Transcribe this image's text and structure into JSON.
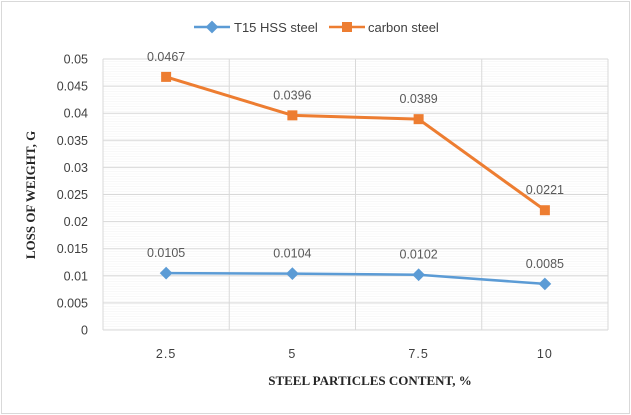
{
  "chart_data": {
    "type": "line",
    "title": "",
    "xlabel": "STEEL PARTICLES CONTENT, %",
    "ylabel": "LOSS OF WEIGHT, G",
    "categories": [
      "2.5",
      "5",
      "7.5",
      "10"
    ],
    "ylim": [
      0,
      0.05
    ],
    "yticks": [
      0,
      0.005,
      0.01,
      0.015,
      0.02,
      0.025,
      0.03,
      0.035,
      0.04,
      0.045,
      0.05
    ],
    "ytick_labels": [
      "0",
      "0.005",
      "0.01",
      "0.015",
      "0.02",
      "0.025",
      "0.03",
      "0.035",
      "0.04",
      "0.045",
      "0.05"
    ],
    "legend_position": "top-center",
    "grid": true,
    "series": [
      {
        "name": "T15 HSS steel",
        "color": "#5b9bd5",
        "marker": "diamond",
        "values": [
          0.0105,
          0.0104,
          0.0102,
          0.0085
        ],
        "labels": [
          "0.0105",
          "0.0104",
          "0.0102",
          "0.0085"
        ]
      },
      {
        "name": "carbon steel",
        "color": "#ed7d31",
        "marker": "square",
        "values": [
          0.0467,
          0.0396,
          0.0389,
          0.0221
        ],
        "labels": [
          "0.0467",
          "0.0396",
          "0.0389",
          "0.0221"
        ]
      }
    ]
  }
}
